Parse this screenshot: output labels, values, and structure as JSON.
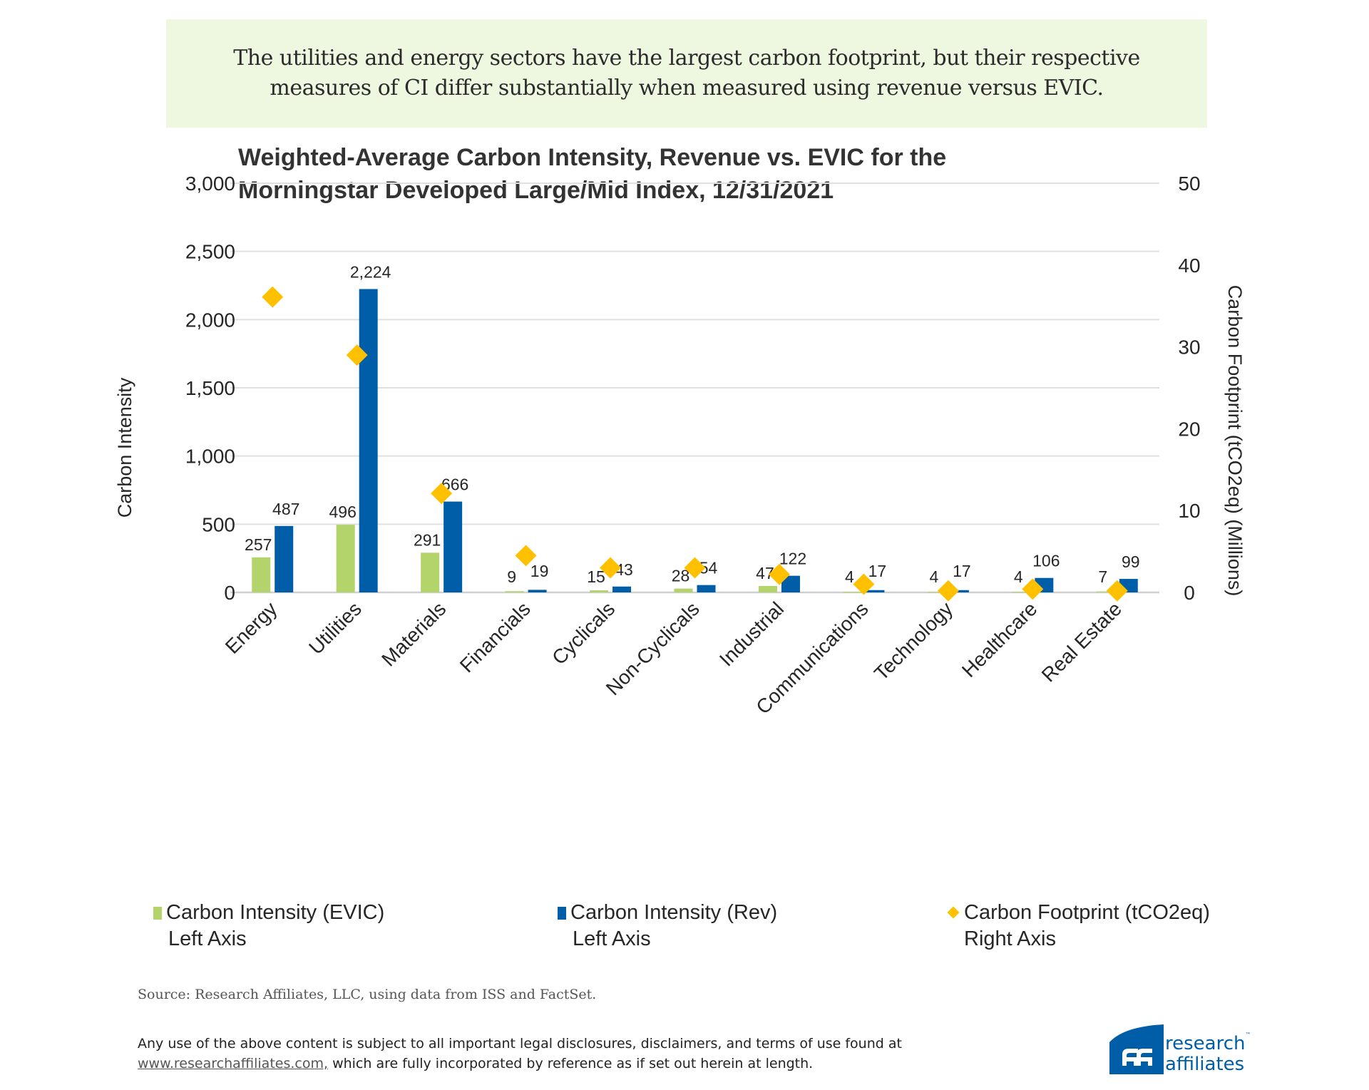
{
  "banner": {
    "line1": "The utilities and energy sectors have the largest carbon footprint, but their respective",
    "line2": "measures of CI differ substantially when measured using revenue versus EVIC."
  },
  "chart_data": {
    "type": "bar",
    "title_line1": "Weighted-Average Carbon Intensity, Revenue vs. EVIC for the",
    "title_line2": "Morningstar Developed Large/Mid Index, 12/31/2021",
    "categories": [
      "Energy",
      "Utilities",
      "Materials",
      "Financials",
      "Cyclicals",
      "Non-Cyclicals",
      "Industrial",
      "Communications",
      "Technology",
      "Healthcare",
      "Real Estate"
    ],
    "series": [
      {
        "name": "Carbon Intensity (EVIC)",
        "axis": "left",
        "kind": "bar",
        "color": "#b3d36b",
        "values": [
          257,
          496,
          291,
          9,
          15,
          28,
          47,
          4,
          4,
          4,
          7
        ]
      },
      {
        "name": "Carbon Intensity (Rev)",
        "axis": "left",
        "kind": "bar",
        "color": "#005ea8",
        "values": [
          487,
          2224,
          666,
          19,
          43,
          54,
          122,
          17,
          17,
          106,
          99
        ]
      },
      {
        "name": "Carbon Footprint (tCO2eq)",
        "axis": "right",
        "kind": "scatter-diamond",
        "color": "#ffc000",
        "values": [
          36.1,
          29.0,
          12.1,
          4.5,
          3.0,
          3.0,
          2.2,
          1.0,
          0.2,
          0.4,
          0.2
        ]
      }
    ],
    "data_labels": {
      "evic": [
        "257",
        "496",
        "291",
        "9",
        "15",
        "28",
        "47",
        "4",
        "4",
        "4",
        "7"
      ],
      "rev": [
        "487",
        "2,224",
        "666",
        "19",
        "43",
        "54",
        "122",
        "17",
        "17",
        "106",
        "99"
      ]
    },
    "ylabel": "Carbon Intensity",
    "ylim": [
      0,
      3000
    ],
    "yticks": [
      0,
      500,
      1000,
      1500,
      2000,
      2500,
      3000
    ],
    "ytick_labels": [
      "0",
      "500",
      "1,000",
      "1,500",
      "2,000",
      "2,500",
      "3,000"
    ],
    "y2label": "Carbon Footprint (tCO2eq) (Millions)",
    "y2lim": [
      0,
      50
    ],
    "y2ticks": [
      0,
      10,
      20,
      30,
      40,
      50
    ],
    "y2tick_labels": [
      "0",
      "10",
      "20",
      "30",
      "40",
      "50"
    ],
    "grid": true,
    "legend_position": "bottom"
  },
  "legend": [
    {
      "line1": "Carbon Intensity (EVIC)",
      "line2": "Left Axis",
      "color": "#b3d36b",
      "marker": "square"
    },
    {
      "line1": "Carbon Intensity (Rev)",
      "line2": "Left Axis",
      "color": "#005ea8",
      "marker": "square"
    },
    {
      "line1": "Carbon Footprint (tCO2eq)",
      "line2": "Right Axis",
      "color": "#ffc000",
      "marker": "diamond"
    }
  ],
  "source": "Source: Research Affiliates, LLC, using data from ISS and FactSet.",
  "disclaimer": {
    "line1": "Any use of the above content is subject to all important legal disclosures, disclaimers, and terms of use found at",
    "link": "www.researchaffiliates.com,",
    "line2_rest": " which are fully incorporated by reference as if set out herein at length."
  },
  "logo": {
    "line1": "research",
    "tm": "™",
    "line2": "affiliates",
    "color": "#005ea8"
  }
}
